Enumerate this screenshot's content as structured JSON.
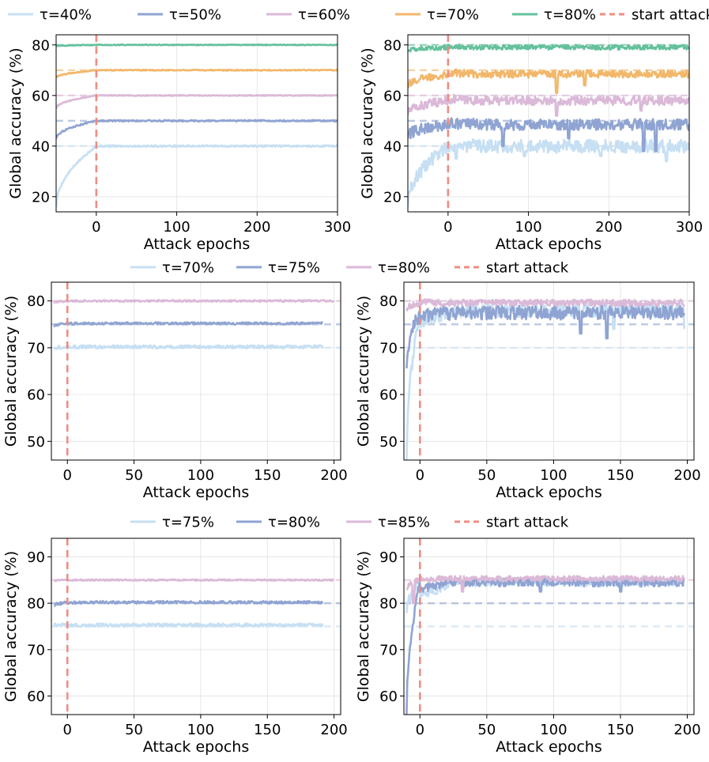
{
  "colors": {
    "t40": "#c6dff3",
    "t50": "#8fa4d2",
    "t60": "#dbb9d8",
    "t70": "#f2b76a",
    "t80": "#63c19c",
    "start": "#f08c82",
    "r_t70": "#c6dff3",
    "r_t75": "#8fa4d2",
    "r_t80": "#dbb9d8",
    "r_t85": "#dbb9d8"
  },
  "legends": [
    {
      "items": [
        {
          "label": "τ=40%",
          "color": "#c6dff3",
          "dashed": false
        },
        {
          "label": "τ=50%",
          "color": "#8fa4d2",
          "dashed": false
        },
        {
          "label": "τ=60%",
          "color": "#dbb9d8",
          "dashed": false
        },
        {
          "label": "τ=70%",
          "color": "#f2b76a",
          "dashed": false
        },
        {
          "label": "τ=80%",
          "color": "#63c19c",
          "dashed": false
        },
        {
          "label": "start attack",
          "color": "#f08c82",
          "dashed": true
        }
      ]
    },
    {
      "items": [
        {
          "label": "τ=70%",
          "color": "#c6dff3",
          "dashed": false
        },
        {
          "label": "τ=75%",
          "color": "#8fa4d2",
          "dashed": false
        },
        {
          "label": "τ=80%",
          "color": "#dbb9d8",
          "dashed": false
        },
        {
          "label": "start attack",
          "color": "#f08c82",
          "dashed": true
        }
      ]
    },
    {
      "items": [
        {
          "label": "τ=75%",
          "color": "#c6dff3",
          "dashed": false
        },
        {
          "label": "τ=80%",
          "color": "#8fa4d2",
          "dashed": false
        },
        {
          "label": "τ=85%",
          "color": "#dbb9d8",
          "dashed": false
        },
        {
          "label": "start attack",
          "color": "#f08c82",
          "dashed": true
        }
      ]
    }
  ],
  "chart_data": [
    {
      "id": "r1-left",
      "type": "line",
      "xlabel": "Attack epochs",
      "ylabel": "Global accuracy (%)",
      "xlim": [
        -50,
        300
      ],
      "ylim": [
        14,
        84
      ],
      "xticks": [
        0,
        100,
        200,
        300
      ],
      "yticks": [
        20,
        40,
        60,
        80
      ],
      "grid": true,
      "start_attack_x": 0,
      "series": [
        {
          "name": "τ=40%",
          "threshold": 40,
          "pre_start": 16,
          "post": 40,
          "noise": 0.35,
          "dips": []
        },
        {
          "name": "τ=50%",
          "threshold": 50,
          "pre_start": 43,
          "post": 50,
          "noise": 0.3,
          "dips": []
        },
        {
          "name": "τ=60%",
          "threshold": 60,
          "pre_start": 55,
          "post": 60,
          "noise": 0.2,
          "dips": []
        },
        {
          "name": "τ=70%",
          "threshold": 70,
          "pre_start": 67,
          "post": 70,
          "noise": 0.2,
          "dips": []
        },
        {
          "name": "τ=80%",
          "threshold": 80,
          "pre_start": 79.5,
          "post": 80,
          "noise": 0.15,
          "dips": []
        }
      ]
    },
    {
      "id": "r1-right",
      "type": "line",
      "xlabel": "Attack epochs",
      "ylabel": "Global accuracy (%)",
      "xlim": [
        -50,
        300
      ],
      "ylim": [
        14,
        84
      ],
      "xticks": [
        0,
        100,
        200,
        300
      ],
      "yticks": [
        20,
        40,
        60,
        80
      ],
      "grid": true,
      "start_attack_x": 0,
      "series": [
        {
          "name": "τ=40%",
          "threshold": 40,
          "pre_start": 17,
          "post": 40,
          "noise": 2.6,
          "dips": [
            [
              10,
              35
            ],
            [
              95,
              36
            ],
            [
              190,
              36
            ],
            [
              272,
              34
            ]
          ]
        },
        {
          "name": "τ=50%",
          "threshold": 50,
          "pre_start": 44,
          "post": 48.5,
          "noise": 2.2,
          "dips": [
            [
              68,
              40
            ],
            [
              150,
              43
            ],
            [
              243,
              38
            ],
            [
              258,
              38
            ]
          ]
        },
        {
          "name": "τ=60%",
          "threshold": 60,
          "pre_start": 53,
          "post": 58,
          "noise": 1.8,
          "dips": [
            [
              135,
              52
            ],
            [
              240,
              54
            ]
          ]
        },
        {
          "name": "τ=70%",
          "threshold": 70,
          "pre_start": 64,
          "post": 68.5,
          "noise": 1.5,
          "dips": [
            [
              135,
              61
            ],
            [
              170,
              64
            ]
          ]
        },
        {
          "name": "τ=80%",
          "threshold": 80,
          "pre_start": 78,
          "post": 79,
          "noise": 0.9,
          "dips": []
        }
      ]
    },
    {
      "id": "r2-left",
      "type": "line",
      "xlabel": "Attack epochs",
      "ylabel": "Global accuracy (%)",
      "xlim": [
        -12,
        205
      ],
      "ylim": [
        46,
        84
      ],
      "xticks": [
        0,
        50,
        100,
        150,
        200
      ],
      "yticks": [
        50,
        60,
        70,
        80
      ],
      "grid": true,
      "start_attack_x": 0,
      "series": [
        {
          "name": "τ=70%",
          "threshold": 70,
          "x_start": -10,
          "x_end": 192,
          "pre_start": 70,
          "post": 70.2,
          "noise": 0.35,
          "dips": []
        },
        {
          "name": "τ=75%",
          "threshold": 75,
          "x_start": -10,
          "x_end": 192,
          "pre_start": 74.5,
          "post": 75.2,
          "noise": 0.25,
          "dips": []
        },
        {
          "name": "τ=80%",
          "threshold": 80,
          "x_start": -10,
          "x_end": 200,
          "pre_start": 79.5,
          "post": 80,
          "noise": 0.2,
          "dips": []
        }
      ]
    },
    {
      "id": "r2-right",
      "type": "line",
      "xlabel": "Attack epochs",
      "ylabel": "Global accuracy (%)",
      "xlim": [
        -12,
        205
      ],
      "ylim": [
        46,
        84
      ],
      "xticks": [
        0,
        50,
        100,
        150,
        200
      ],
      "yticks": [
        50,
        60,
        70,
        80
      ],
      "grid": true,
      "start_attack_x": 0,
      "series": [
        {
          "name": "τ=70%",
          "threshold": 70,
          "x_start": -10,
          "x_end": 198,
          "pre_start": 46,
          "post": 78,
          "noise": 1.5,
          "dips": [
            [
              120,
              74
            ],
            [
              145,
              74
            ],
            [
              198,
              74
            ]
          ]
        },
        {
          "name": "τ=75%",
          "threshold": 75,
          "x_start": -10,
          "x_end": 198,
          "pre_start": 66,
          "post": 77.5,
          "noise": 1.5,
          "dips": [
            [
              120,
              73
            ],
            [
              140,
              72
            ]
          ]
        },
        {
          "name": "τ=80%",
          "threshold": 80,
          "x_start": -10,
          "x_end": 198,
          "pre_start": 78,
          "post": 79.6,
          "noise": 0.7,
          "dips": []
        }
      ]
    },
    {
      "id": "r3-left",
      "type": "line",
      "xlabel": "Attack epochs",
      "ylabel": "Global accuracy (%)",
      "xlim": [
        -12,
        205
      ],
      "ylim": [
        56,
        94
      ],
      "xticks": [
        0,
        50,
        100,
        150,
        200
      ],
      "yticks": [
        60,
        70,
        80,
        90
      ],
      "grid": true,
      "start_attack_x": 0,
      "series": [
        {
          "name": "τ=75%",
          "threshold": 75,
          "x_start": -10,
          "x_end": 192,
          "pre_start": 75.3,
          "post": 75.3,
          "noise": 0.35,
          "dips": []
        },
        {
          "name": "τ=80%",
          "threshold": 80,
          "x_start": -10,
          "x_end": 192,
          "pre_start": 79.5,
          "post": 80.2,
          "noise": 0.3,
          "dips": []
        },
        {
          "name": "τ=85%",
          "threshold": 85,
          "x_start": -10,
          "x_end": 200,
          "pre_start": 84.8,
          "post": 85,
          "noise": 0.15,
          "dips": []
        }
      ]
    },
    {
      "id": "r3-right",
      "type": "line",
      "xlabel": "Attack epochs",
      "ylabel": "Global accuracy (%)",
      "xlim": [
        -12,
        205
      ],
      "ylim": [
        56,
        94
      ],
      "xticks": [
        0,
        50,
        100,
        150,
        200
      ],
      "yticks": [
        60,
        70,
        80,
        90
      ],
      "grid": true,
      "start_attack_x": 0,
      "series": [
        {
          "name": "τ=75%",
          "threshold": 75,
          "x_start": -10,
          "x_end": 198,
          "pre_start": 78,
          "post": 84.5,
          "noise": 0.9,
          "dips": [
            [
              12,
              82
            ],
            [
              165,
              83.5
            ]
          ]
        },
        {
          "name": "τ=80%",
          "threshold": 80,
          "x_start": -10,
          "x_end": 198,
          "pre_start": 56,
          "post": 84.5,
          "noise": 0.9,
          "dips": [
            [
              90,
              82.5
            ],
            [
              150,
              82.5
            ]
          ]
        },
        {
          "name": "τ=85%",
          "threshold": 85,
          "x_start": -10,
          "x_end": 198,
          "pre_start": 83,
          "post": 85.3,
          "noise": 0.6,
          "dips": [
            [
              -5,
              80
            ],
            [
              32,
              82.5
            ]
          ]
        }
      ]
    }
  ]
}
